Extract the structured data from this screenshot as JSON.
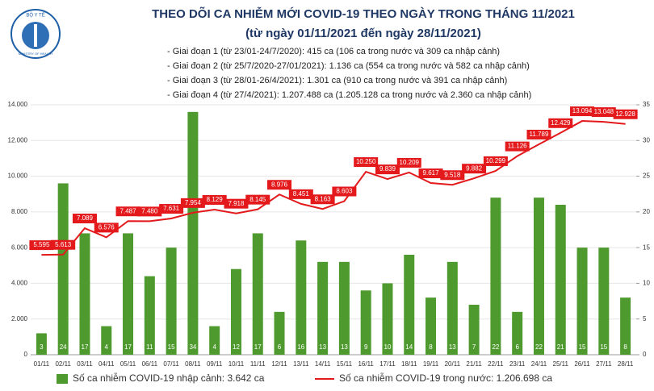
{
  "logo": {
    "top": "BỘ Y TẾ",
    "bottom": "MINISTRY OF HEALTH"
  },
  "chart_data": {
    "type": "combo",
    "title": "THEO DÕI CA NHIỄM MỚI COVID-19 THEO NGÀY TRONG THÁNG 11/2021",
    "subtitle": "(từ ngày 01/11/2021 đến ngày 28/11/2021)",
    "annotations": [
      "- Giai đoạn 1 (từ 23/01-24/7/2020): 415 ca (106 ca trong nước và 309 ca nhập cảnh)",
      "- Giai đoạn 2 (từ 25/7/2020-27/01/2021): 1.136 ca (554 ca trong nước và 582 ca nhập cảnh)",
      "- Giai đoạn 3 (từ 28/01-26/4/2021): 1.301 ca (910 ca trong nước và 391 ca nhập cảnh)",
      "- Giai đoạn 4 (từ 27/4/2021): 1.207.488 ca (1.205.128 ca trong nước và 2.360 ca nhập cảnh)"
    ],
    "categories": [
      "01/11",
      "02/11",
      "03/11",
      "04/11",
      "05/11",
      "06/11",
      "07/11",
      "08/11",
      "09/11",
      "10/11",
      "11/11",
      "12/11",
      "13/11",
      "14/11",
      "15/11",
      "16/11",
      "17/11",
      "18/11",
      "19/11",
      "20/11",
      "21/11",
      "22/11",
      "23/11",
      "24/11",
      "25/11",
      "26/11",
      "27/11",
      "28/11"
    ],
    "series": [
      {
        "name": "Số ca nhiễm COVID-19 nhập cảnh: 3.642 ca",
        "type": "bar",
        "axis": "y2",
        "color": "#4f9a2e",
        "values": [
          3,
          24,
          17,
          4,
          17,
          11,
          15,
          34,
          4,
          12,
          17,
          6,
          16,
          13,
          13,
          9,
          10,
          14,
          8,
          13,
          7,
          22,
          6,
          22,
          21,
          15,
          15,
          8
        ]
      },
      {
        "name": "Số ca nhiễm COVID-19 trong nước: 1.206.698 ca",
        "type": "line",
        "color": "#e3191c",
        "values": [
          5595,
          5613,
          7089,
          6576,
          7487,
          7480,
          7631,
          7954,
          8129,
          7918,
          8145,
          8976,
          8451,
          8163,
          8603,
          10250,
          9839,
          10209,
          9617,
          9518,
          9882,
          10299,
          11126,
          11789,
          12429,
          13094,
          13048,
          12928
        ],
        "value_labels": [
          "5.595",
          "5.613",
          "7.089",
          "6.576",
          "7.487",
          "7.480",
          "7.631",
          "7.954",
          "8.129",
          "7.918",
          "8.145",
          "8.976",
          "8.451",
          "8.163",
          "8.603",
          "10.250",
          "9.839",
          "10.209",
          "9.617",
          "9.518",
          "9.882",
          "10.299",
          "11.126",
          "11.789",
          "12.429",
          "13.094",
          "13.048",
          "12.928"
        ]
      }
    ],
    "ylim": [
      0,
      14000
    ],
    "yticks": [
      0,
      {
        "value": 2000,
        "label": "2.000"
      },
      {
        "value": 4000,
        "label": "4.000"
      },
      {
        "value": 6000,
        "label": "6.000"
      },
      {
        "value": 8000,
        "label": "8.000"
      },
      {
        "value": 10000,
        "label": "10.000"
      },
      {
        "value": 12000,
        "label": "12.000"
      },
      {
        "value": 14000,
        "label": "14.000"
      }
    ],
    "y2lim": [
      0,
      35
    ],
    "y2ticks": [
      0,
      5,
      10,
      15,
      20,
      25,
      30,
      35
    ],
    "grid": true
  }
}
